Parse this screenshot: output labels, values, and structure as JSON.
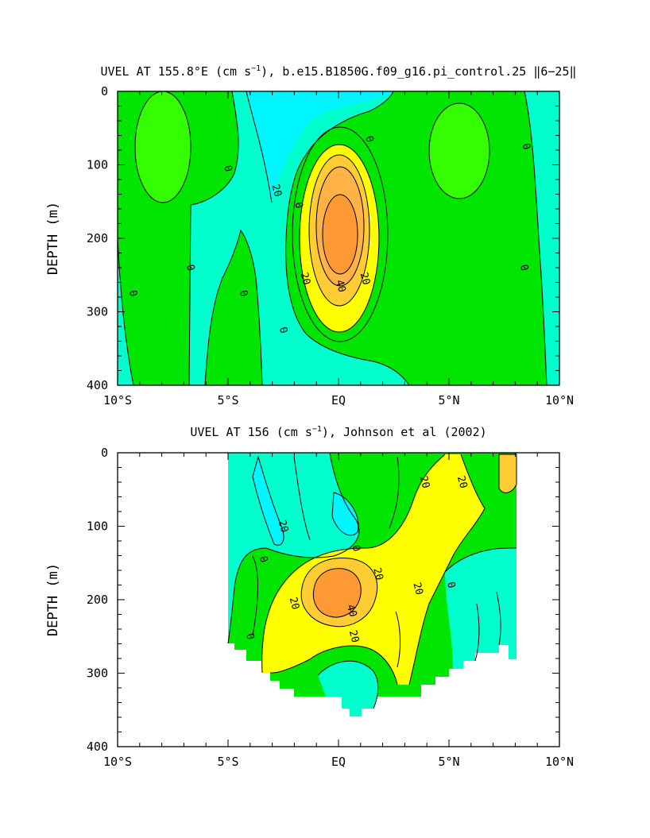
{
  "chart_data": [
    {
      "type": "contour",
      "title": "UVEL AT 155.8°E (cm s⁻¹), b.e15.B1850G.f09_g16.pi_control.25 ‖6–25‖",
      "title_parts": {
        "before": "UVEL AT 155.8°E (cm s",
        "exp": "−1",
        "after": "), b.e15.B1850G.f09_g16.pi_control.25 ‖6−25‖"
      },
      "xlabel": "",
      "ylabel": "DEPTH (m)",
      "xlim": [
        -10,
        10
      ],
      "ylim": [
        400,
        0
      ],
      "x_ticks": [
        {
          "v": -10,
          "label": "10°S"
        },
        {
          "v": -5,
          "label": "5°S"
        },
        {
          "v": 0,
          "label": "EQ"
        },
        {
          "v": 5,
          "label": "5°N"
        },
        {
          "v": 10,
          "label": "10°N"
        }
      ],
      "y_ticks": [
        {
          "v": 0,
          "label": "0"
        },
        {
          "v": 100,
          "label": "100"
        },
        {
          "v": 200,
          "label": "200"
        },
        {
          "v": 300,
          "label": "300"
        },
        {
          "v": 400,
          "label": "400"
        }
      ],
      "contour_interval": 10,
      "max_value_estimate": 55,
      "max_location": {
        "lat": 0,
        "depth": 200
      },
      "contour_labels": [
        {
          "text": "0",
          "lat": -5,
          "depth": 105
        },
        {
          "text": "20",
          "lat": -2.8,
          "depth": 135
        },
        {
          "text": "0",
          "lat": -1.8,
          "depth": 155
        },
        {
          "text": "0",
          "lat": 1.4,
          "depth": 65
        },
        {
          "text": "0",
          "lat": 8.5,
          "depth": 75
        },
        {
          "text": "0",
          "lat": -6.7,
          "depth": 240
        },
        {
          "text": "0",
          "lat": -9.3,
          "depth": 275
        },
        {
          "text": "0",
          "lat": -4.3,
          "depth": 275
        },
        {
          "text": "0",
          "lat": -2.5,
          "depth": 325
        },
        {
          "text": "20",
          "lat": -1.5,
          "depth": 255
        },
        {
          "text": "40",
          "lat": 0.1,
          "depth": 265
        },
        {
          "text": "20",
          "lat": 1.2,
          "depth": 255
        },
        {
          "text": "0",
          "lat": 8.4,
          "depth": 240
        }
      ]
    },
    {
      "type": "contour",
      "title": "UVEL AT 156 (cm s⁻¹), Johnson et al (2002)",
      "title_parts": {
        "before": "UVEL AT 156 (cm s",
        "exp": "−1",
        "after": "), Johnson et al (2002)"
      },
      "xlabel": "",
      "ylabel": "DEPTH (m)",
      "xlim": [
        -10,
        10
      ],
      "ylim": [
        400,
        0
      ],
      "x_ticks": [
        {
          "v": -10,
          "label": "10°S"
        },
        {
          "v": -5,
          "label": "5°S"
        },
        {
          "v": 0,
          "label": "EQ"
        },
        {
          "v": 5,
          "label": "5°N"
        },
        {
          "v": 10,
          "label": "10°N"
        }
      ],
      "y_ticks": [
        {
          "v": 0,
          "label": "0"
        },
        {
          "v": 100,
          "label": "100"
        },
        {
          "v": 200,
          "label": "200"
        },
        {
          "v": 300,
          "label": "300"
        },
        {
          "v": 400,
          "label": "400"
        }
      ],
      "contour_interval": 10,
      "data_lat_range": [
        -5,
        8
      ],
      "max_value_estimate": 45,
      "max_location": {
        "lat": 0,
        "depth": 200
      },
      "contour_labels": [
        {
          "text": "20",
          "lat": 3.9,
          "depth": 40
        },
        {
          "text": "20",
          "lat": 5.6,
          "depth": 40
        },
        {
          "text": "20",
          "lat": -2.5,
          "depth": 100
        },
        {
          "text": "0",
          "lat": -3.4,
          "depth": 145
        },
        {
          "text": "0",
          "lat": 0.8,
          "depth": 130
        },
        {
          "text": "20",
          "lat": 1.8,
          "depth": 165
        },
        {
          "text": "20",
          "lat": -2.0,
          "depth": 205
        },
        {
          "text": "20",
          "lat": 3.6,
          "depth": 185
        },
        {
          "text": "0",
          "lat": 5.1,
          "depth": 180
        },
        {
          "text": "40",
          "lat": 0.6,
          "depth": 215
        },
        {
          "text": "20",
          "lat": 0.7,
          "depth": 250
        },
        {
          "text": "0",
          "lat": -4.0,
          "depth": 250
        }
      ]
    }
  ],
  "colors": {
    "light_green": "#33ff00",
    "green": "#00e600",
    "cyan": "#00ffcc",
    "light_cyan": "#00f6ff",
    "yellow": "#ffff00",
    "gold": "#ffcc33",
    "orange": "#ff9933",
    "light_orange": "#ffb347"
  }
}
